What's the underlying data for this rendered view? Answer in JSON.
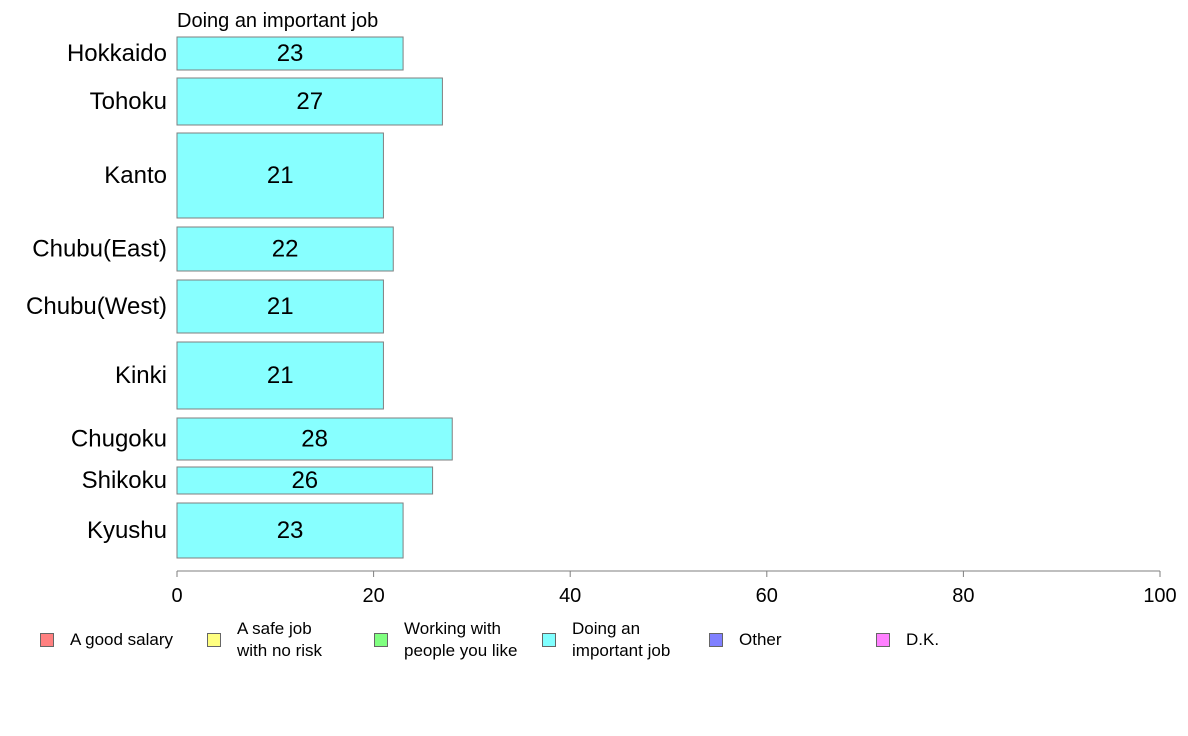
{
  "chart_data": {
    "type": "bar",
    "orientation": "horizontal",
    "title": "Doing an important job",
    "categories": [
      "Hokkaido",
      "Tohoku",
      "Kanto",
      "Chubu(East)",
      "Chubu(West)",
      "Kinki",
      "Chugoku",
      "Shikoku",
      "Kyushu"
    ],
    "values": [
      23,
      27,
      21,
      22,
      21,
      21,
      28,
      26,
      23
    ],
    "xlim": [
      0,
      100
    ],
    "xticks": [
      0,
      20,
      40,
      60,
      80,
      100
    ],
    "xlabel": "",
    "ylabel": "",
    "grid": false,
    "bar_color": "#87FFFF",
    "bar_border_color": "#7f7f7f",
    "legend_position": "bottom",
    "legend": [
      {
        "label": "A good salary",
        "color": "#FF8080"
      },
      {
        "label": "A safe job\nwith no risk",
        "color": "#FFFF80"
      },
      {
        "label": "Working with\npeople you like",
        "color": "#80FF80"
      },
      {
        "label": "Doing an\nimportant job",
        "color": "#80FFFF"
      },
      {
        "label": "Other",
        "color": "#8080FF"
      },
      {
        "label": "D.K.",
        "color": "#FF80FF"
      }
    ]
  }
}
